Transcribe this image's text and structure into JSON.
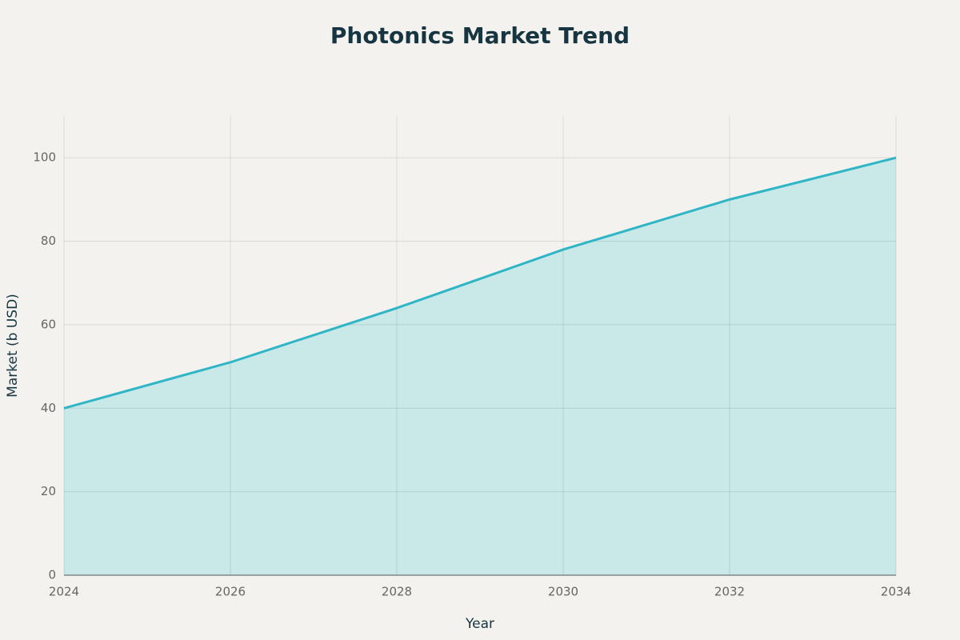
{
  "chart_data": {
    "type": "area",
    "title": "Photonics Market Trend",
    "x_label": "Year",
    "y_label": "Market (b USD)",
    "x": [
      2024,
      2026,
      2028,
      2030,
      2032,
      2034
    ],
    "values": [
      40,
      51,
      64,
      78,
      90,
      100
    ],
    "color": "#2fb5c6",
    "fill_color": "#c9e8e8",
    "xlim": [
      2024,
      2034
    ],
    "xticks": [
      2024,
      2026,
      2028,
      2030,
      2032,
      2034
    ],
    "ylim": [
      0,
      110
    ],
    "yticks": [
      0,
      20,
      40,
      60,
      80,
      100
    ],
    "grid": true
  }
}
